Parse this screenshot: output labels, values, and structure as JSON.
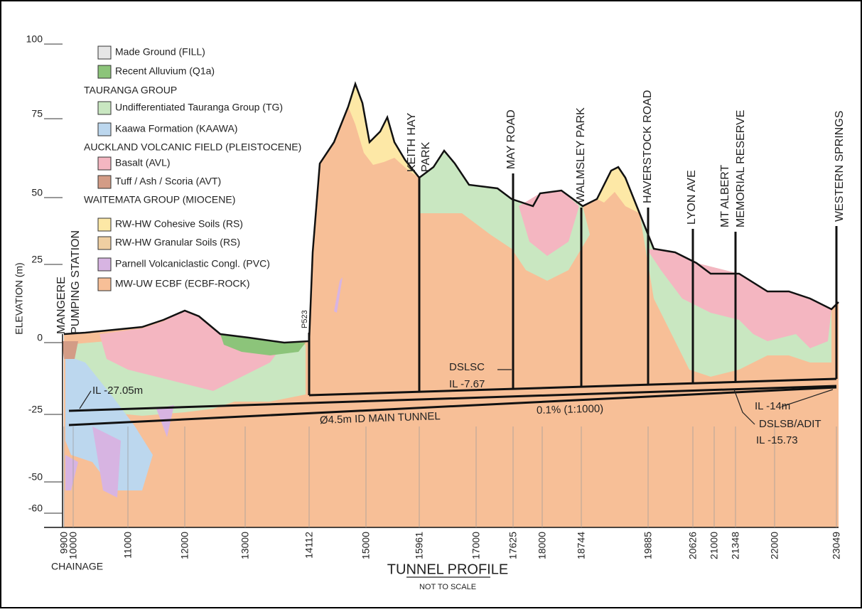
{
  "title": "TUNNEL PROFILE",
  "subtitle": "NOT TO SCALE",
  "legend": [
    {
      "label": "Made Ground (FILL)",
      "color": "#e6e6e6"
    },
    {
      "label": "Recent Alluvium (Q1a)",
      "color": "#8cc47a"
    },
    {
      "header": "TAURANGA GROUP"
    },
    {
      "label": "Undifferentiated Tauranga Group (TG)",
      "color": "#c9e7c1"
    },
    {
      "label": "Kaawa Formation (KAAWA)",
      "color": "#bcd7ee"
    },
    {
      "header": "AUCKLAND VOLCANIC FIELD (PLEISTOCENE)"
    },
    {
      "label": "Basalt (AVL)",
      "color": "#f4b6c1"
    },
    {
      "label": "Tuff / Ash / Scoria (AVT)",
      "color": "#d39c86"
    },
    {
      "header": "WAITEMATA GROUP (MIOCENE)"
    },
    {
      "label": "RW-HW Cohesive Soils (RS)",
      "color": "#fde8a6"
    },
    {
      "label": "RW-HW Granular Soils (RS)",
      "color": "#efcfa2"
    },
    {
      "label": "Parnell Volcaniclastic Congl. (PVC)",
      "color": "#d7b4e2"
    },
    {
      "label": "MW-UW ECBF (ECBF-ROCK)",
      "color": "#f7bf97"
    }
  ],
  "axis": {
    "label": "ELEVATION (m)",
    "yticks": [
      100,
      75,
      50,
      25,
      0,
      -25,
      -50,
      -60
    ],
    "xticks": [
      9900,
      10000,
      11000,
      12000,
      13000,
      14112,
      15000,
      15961,
      17000,
      17625,
      18000,
      18744,
      19885,
      20626,
      21000,
      21348,
      22000,
      23049
    ],
    "x_caption": "CHAINAGE"
  },
  "sites": [
    {
      "lines": [
        "MANGERE",
        "PUMPING STATION"
      ]
    },
    {
      "lines": [
        "P523"
      ]
    },
    {
      "lines": [
        "KEITH HAY",
        "PARK"
      ]
    },
    {
      "lines": [
        "MAY ROAD"
      ]
    },
    {
      "lines": [
        "WALMSLEY PARK"
      ]
    },
    {
      "lines": [
        "HAVERSTOCK ROAD"
      ]
    },
    {
      "lines": [
        "LYON AVE"
      ]
    },
    {
      "lines": [
        "MT ALBERT",
        "MEMORIAL RESERVE"
      ]
    },
    {
      "lines": [
        "WESTERN SPRINGS"
      ]
    }
  ],
  "annotations": [
    "IL -27.05m",
    "Ø4.5m ID MAIN TUNNEL",
    "0.1% (1:1000)",
    "DSLSC",
    "IL -7.67",
    "IL -14m",
    "DSLSB/ADIT",
    "IL -15.73"
  ]
}
